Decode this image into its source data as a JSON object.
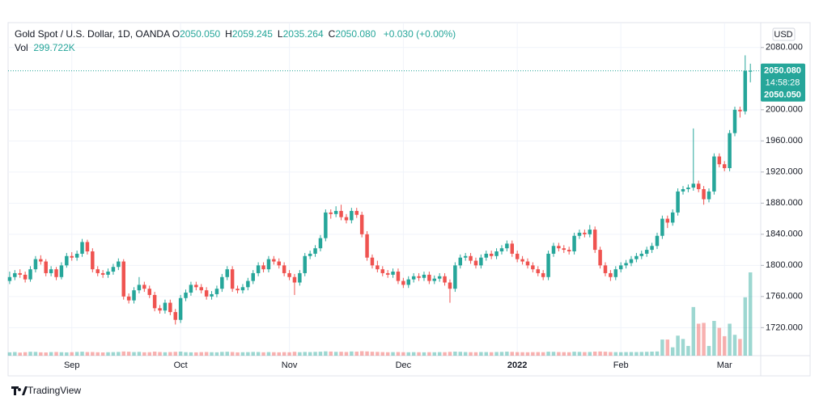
{
  "chart_data": {
    "type": "candlestick",
    "header": {
      "symbol": "Gold Spot / U.S. Dollar, 1D, OANDA",
      "fields": [
        {
          "label": "O",
          "value": "2050.050"
        },
        {
          "label": "H",
          "value": "2059.245"
        },
        {
          "label": "L",
          "value": "2035.264"
        },
        {
          "label": "C",
          "value": "2050.080"
        }
      ],
      "change": "+0.030 (+0.00%)",
      "volume_label": "Vol",
      "volume_value": "299.722K"
    },
    "currency": "USD",
    "last_price": {
      "price": "2050.080",
      "countdown": "14:58:28",
      "open": "2050.050"
    },
    "brand": "TradingView",
    "up_color": "#26a69a",
    "down_color": "#ef5350",
    "grid": true,
    "ohlc": [
      [
        1780,
        1792,
        1776,
        1785
      ],
      [
        1785,
        1794,
        1781,
        1790
      ],
      [
        1790,
        1795,
        1784,
        1788
      ],
      [
        1788,
        1792,
        1778,
        1782
      ],
      [
        1782,
        1799,
        1779,
        1795
      ],
      [
        1795,
        1812,
        1791,
        1808
      ],
      [
        1808,
        1813,
        1801,
        1805
      ],
      [
        1805,
        1808,
        1786,
        1790
      ],
      [
        1790,
        1799,
        1786,
        1795
      ],
      [
        1795,
        1798,
        1781,
        1785
      ],
      [
        1785,
        1804,
        1782,
        1800
      ],
      [
        1800,
        1816,
        1797,
        1812
      ],
      [
        1812,
        1817,
        1806,
        1810
      ],
      [
        1810,
        1819,
        1806,
        1815
      ],
      [
        1815,
        1834,
        1811,
        1830
      ],
      [
        1830,
        1833,
        1814,
        1818
      ],
      [
        1818,
        1822,
        1791,
        1795
      ],
      [
        1795,
        1799,
        1786,
        1790
      ],
      [
        1790,
        1794,
        1784,
        1788
      ],
      [
        1788,
        1796,
        1784,
        1792
      ],
      [
        1792,
        1802,
        1788,
        1798
      ],
      [
        1798,
        1809,
        1794,
        1805
      ],
      [
        1805,
        1808,
        1756,
        1760
      ],
      [
        1760,
        1764,
        1751,
        1755
      ],
      [
        1755,
        1772,
        1751,
        1768
      ],
      [
        1768,
        1785,
        1764,
        1775
      ],
      [
        1775,
        1779,
        1766,
        1770
      ],
      [
        1770,
        1774,
        1758,
        1762
      ],
      [
        1762,
        1766,
        1741,
        1745
      ],
      [
        1745,
        1749,
        1738,
        1742
      ],
      [
        1742,
        1756,
        1738,
        1752
      ],
      [
        1752,
        1756,
        1736,
        1740
      ],
      [
        1740,
        1744,
        1724,
        1730
      ],
      [
        1730,
        1762,
        1726,
        1758
      ],
      [
        1758,
        1769,
        1754,
        1765
      ],
      [
        1765,
        1779,
        1761,
        1775
      ],
      [
        1775,
        1779,
        1768,
        1772
      ],
      [
        1772,
        1776,
        1764,
        1768
      ],
      [
        1768,
        1772,
        1756,
        1760
      ],
      [
        1760,
        1767,
        1756,
        1763
      ],
      [
        1763,
        1774,
        1759,
        1770
      ],
      [
        1770,
        1789,
        1766,
        1785
      ],
      [
        1785,
        1799,
        1781,
        1795
      ],
      [
        1795,
        1799,
        1766,
        1770
      ],
      [
        1770,
        1774,
        1764,
        1768
      ],
      [
        1768,
        1776,
        1764,
        1772
      ],
      [
        1772,
        1784,
        1768,
        1780
      ],
      [
        1780,
        1794,
        1776,
        1790
      ],
      [
        1790,
        1804,
        1786,
        1800
      ],
      [
        1800,
        1804,
        1791,
        1795
      ],
      [
        1795,
        1812,
        1791,
        1808
      ],
      [
        1808,
        1812,
        1801,
        1805
      ],
      [
        1805,
        1809,
        1796,
        1800
      ],
      [
        1800,
        1804,
        1786,
        1790
      ],
      [
        1790,
        1794,
        1781,
        1785
      ],
      [
        1785,
        1789,
        1762,
        1778
      ],
      [
        1778,
        1794,
        1774,
        1790
      ],
      [
        1790,
        1816,
        1786,
        1812
      ],
      [
        1812,
        1819,
        1808,
        1815
      ],
      [
        1815,
        1826,
        1811,
        1822
      ],
      [
        1822,
        1839,
        1818,
        1835
      ],
      [
        1835,
        1872,
        1831,
        1868
      ],
      [
        1868,
        1872,
        1860,
        1866
      ],
      [
        1866,
        1876,
        1862,
        1870
      ],
      [
        1870,
        1878,
        1858,
        1862
      ],
      [
        1862,
        1866,
        1854,
        1858
      ],
      [
        1858,
        1874,
        1854,
        1870
      ],
      [
        1870,
        1874,
        1861,
        1865
      ],
      [
        1865,
        1869,
        1836,
        1840
      ],
      [
        1840,
        1844,
        1806,
        1810
      ],
      [
        1810,
        1814,
        1796,
        1800
      ],
      [
        1800,
        1806,
        1791,
        1795
      ],
      [
        1795,
        1799,
        1786,
        1790
      ],
      [
        1790,
        1794,
        1784,
        1788
      ],
      [
        1788,
        1796,
        1784,
        1792
      ],
      [
        1792,
        1796,
        1776,
        1780
      ],
      [
        1780,
        1784,
        1771,
        1775
      ],
      [
        1775,
        1786,
        1771,
        1782
      ],
      [
        1782,
        1790,
        1778,
        1786
      ],
      [
        1786,
        1790,
        1780,
        1784
      ],
      [
        1784,
        1792,
        1780,
        1788
      ],
      [
        1788,
        1792,
        1776,
        1780
      ],
      [
        1780,
        1787,
        1776,
        1783
      ],
      [
        1783,
        1790,
        1779,
        1786
      ],
      [
        1786,
        1790,
        1774,
        1778
      ],
      [
        1778,
        1782,
        1752,
        1770
      ],
      [
        1770,
        1804,
        1766,
        1800
      ],
      [
        1800,
        1814,
        1796,
        1810
      ],
      [
        1810,
        1816,
        1806,
        1812
      ],
      [
        1812,
        1816,
        1802,
        1806
      ],
      [
        1806,
        1810,
        1796,
        1800
      ],
      [
        1800,
        1814,
        1796,
        1810
      ],
      [
        1810,
        1819,
        1806,
        1815
      ],
      [
        1815,
        1819,
        1808,
        1812
      ],
      [
        1812,
        1822,
        1808,
        1818
      ],
      [
        1818,
        1826,
        1814,
        1822
      ],
      [
        1822,
        1832,
        1818,
        1828
      ],
      [
        1828,
        1832,
        1811,
        1815
      ],
      [
        1815,
        1819,
        1804,
        1808
      ],
      [
        1808,
        1812,
        1801,
        1805
      ],
      [
        1805,
        1809,
        1796,
        1800
      ],
      [
        1800,
        1804,
        1791,
        1795
      ],
      [
        1795,
        1799,
        1786,
        1790
      ],
      [
        1790,
        1794,
        1781,
        1785
      ],
      [
        1785,
        1819,
        1781,
        1815
      ],
      [
        1815,
        1829,
        1811,
        1825
      ],
      [
        1825,
        1829,
        1818,
        1822
      ],
      [
        1822,
        1826,
        1816,
        1820
      ],
      [
        1820,
        1824,
        1814,
        1818
      ],
      [
        1818,
        1842,
        1814,
        1838
      ],
      [
        1838,
        1846,
        1834,
        1842
      ],
      [
        1842,
        1846,
        1836,
        1840
      ],
      [
        1840,
        1852,
        1836,
        1846
      ],
      [
        1846,
        1850,
        1816,
        1820
      ],
      [
        1820,
        1824,
        1796,
        1800
      ],
      [
        1800,
        1804,
        1786,
        1790
      ],
      [
        1790,
        1794,
        1780,
        1785
      ],
      [
        1785,
        1799,
        1781,
        1795
      ],
      [
        1795,
        1804,
        1791,
        1800
      ],
      [
        1800,
        1807,
        1796,
        1803
      ],
      [
        1803,
        1812,
        1799,
        1808
      ],
      [
        1808,
        1816,
        1804,
        1812
      ],
      [
        1812,
        1819,
        1808,
        1815
      ],
      [
        1815,
        1824,
        1811,
        1820
      ],
      [
        1820,
        1829,
        1816,
        1825
      ],
      [
        1825,
        1842,
        1821,
        1838
      ],
      [
        1838,
        1864,
        1834,
        1860
      ],
      [
        1860,
        1864,
        1848,
        1855
      ],
      [
        1855,
        1872,
        1851,
        1868
      ],
      [
        1868,
        1899,
        1864,
        1895
      ],
      [
        1895,
        1902,
        1891,
        1898
      ],
      [
        1898,
        1904,
        1894,
        1900
      ],
      [
        1900,
        1976,
        1896,
        1905
      ],
      [
        1905,
        1909,
        1894,
        1898
      ],
      [
        1898,
        1902,
        1878,
        1885
      ],
      [
        1885,
        1899,
        1881,
        1895
      ],
      [
        1895,
        1944,
        1891,
        1940
      ],
      [
        1940,
        1944,
        1926,
        1930
      ],
      [
        1930,
        1934,
        1921,
        1925
      ],
      [
        1925,
        1974,
        1921,
        1970
      ],
      [
        1970,
        2004,
        1966,
        2000
      ],
      [
        2000,
        2004,
        1990,
        1998
      ],
      [
        1998,
        2070,
        1994,
        2050.05
      ],
      [
        2050.05,
        2059.245,
        2035.264,
        2050.08
      ]
    ],
    "volume": [
      12000,
      13000,
      11000,
      12500,
      14000,
      13500,
      12000,
      11500,
      12800,
      13200,
      12400,
      11800,
      12600,
      13400,
      14200,
      12900,
      13100,
      12200,
      11600,
      12300,
      12700,
      13300,
      15000,
      14100,
      12800,
      13600,
      12100,
      12400,
      14500,
      13000,
      12200,
      12900,
      13800,
      14600,
      12500,
      12000,
      11900,
      12700,
      13100,
      12400,
      12000,
      13500,
      14000,
      13200,
      11800,
      12300,
      12600,
      13400,
      13000,
      12100,
      12800,
      12400,
      12000,
      12600,
      12200,
      13900,
      12500,
      13300,
      12800,
      13600,
      14200,
      15500,
      14800,
      13700,
      14000,
      13200,
      15100,
      14400,
      16000,
      15200,
      14100,
      13500,
      12800,
      12300,
      12700,
      13000,
      12400,
      12100,
      12600,
      12300,
      12000,
      12500,
      12200,
      12700,
      12400,
      13600,
      14500,
      13800,
      12900,
      12500,
      12300,
      13000,
      12800,
      12400,
      13100,
      13500,
      14300,
      13600,
      12700,
      12400,
      12200,
      12600,
      12800,
      12500,
      14200,
      13800,
      12900,
      12600,
      12300,
      14100,
      13500,
      12800,
      13200,
      14600,
      15000,
      14200,
      13100,
      12700,
      12500,
      12800,
      13000,
      12900,
      13400,
      13800,
      14500,
      15000,
      58000,
      58000,
      30000,
      72000,
      60000,
      35000,
      175000,
      115000,
      118000,
      35000,
      125000,
      100000,
      70000,
      115000,
      75000,
      60000,
      210000,
      299722
    ],
    "vlim": [
      0,
      320000
    ],
    "xlim": [
      -0.3,
      145
    ],
    "xticks": [
      {
        "value": 12,
        "label": "Sep"
      },
      {
        "value": 33,
        "label": "Oct"
      },
      {
        "value": 54,
        "label": "Nov"
      },
      {
        "value": 76,
        "label": "Dec"
      },
      {
        "value": 98,
        "label": "2022"
      },
      {
        "value": 118,
        "label": "Feb"
      },
      {
        "value": 138,
        "label": "Mar"
      }
    ],
    "ylim": [
      1684,
      2112
    ],
    "yticks": [
      {
        "value": 1720,
        "label": "1720.000"
      },
      {
        "value": 1760,
        "label": "1760.000"
      },
      {
        "value": 1800,
        "label": "1800.000"
      },
      {
        "value": 1840,
        "label": "1840.000"
      },
      {
        "value": 1880,
        "label": "1880.000"
      },
      {
        "value": 1920,
        "label": "1920.000"
      },
      {
        "value": 1960,
        "label": "1960.000"
      },
      {
        "value": 2000,
        "label": "2000.000"
      },
      {
        "value": 2080,
        "label": "2080.000"
      }
    ]
  }
}
